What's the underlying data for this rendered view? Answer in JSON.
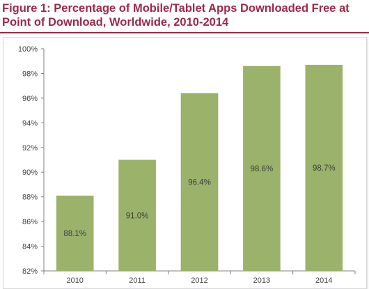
{
  "header": {
    "title_line1": "Figure 1: Percentage of Mobile/Tablet Apps Downloaded Free at",
    "title_line2": "Point of Download, Worldwide, 2010-2014"
  },
  "colors": {
    "title": "#9a2a48",
    "bar": "#9bb26a",
    "axis": "#808080",
    "text": "#404040"
  },
  "chart_data": {
    "type": "bar",
    "title": "Figure 1: Percentage of Mobile/Tablet Apps Downloaded Free at Point of Download, Worldwide, 2010-2014",
    "categories": [
      "2010",
      "2011",
      "2012",
      "2013",
      "2014"
    ],
    "values": [
      88.1,
      91.0,
      96.4,
      98.6,
      98.7
    ],
    "data_labels": [
      "88.1%",
      "91.0%",
      "96.4%",
      "98.6%",
      "98.7%"
    ],
    "ylim": [
      82,
      100
    ],
    "yticks": [
      82,
      84,
      86,
      88,
      90,
      92,
      94,
      96,
      98,
      100
    ],
    "ytick_labels": [
      "82%",
      "84%",
      "86%",
      "88%",
      "90%",
      "92%",
      "94%",
      "96%",
      "98%",
      "100%"
    ],
    "xlabel": "",
    "ylabel": "",
    "grid": false,
    "legend": "none"
  }
}
